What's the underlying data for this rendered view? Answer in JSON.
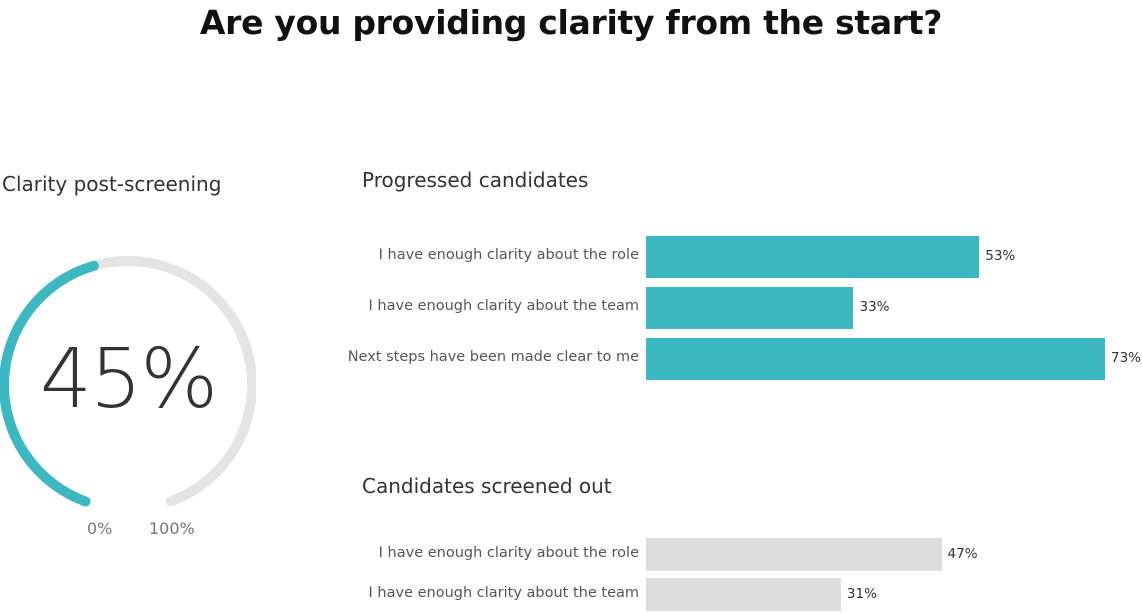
{
  "page": {
    "title": "Are you providing clarity from the start?"
  },
  "colors": {
    "teal": "#3bb8c2",
    "grey": "#dddddd",
    "track": "#e4e4e4"
  },
  "chart_data": [
    {
      "type": "gauge",
      "title": "Clarity post-screening",
      "value": 45,
      "value_label": "45%",
      "min_label": "0%",
      "max_label": "100%",
      "range": [
        0,
        100
      ]
    },
    {
      "type": "bar",
      "orientation": "horizontal",
      "title": "Progressed candidates",
      "categories": [
        "I have enough clarity about the role",
        "I have enough clarity about the team",
        "Next steps have been made clear to me"
      ],
      "values": [
        53,
        33,
        73
      ],
      "value_labels": [
        "53%",
        "33%",
        "73%"
      ],
      "xlim": [
        0,
        73
      ]
    },
    {
      "type": "bar",
      "orientation": "horizontal",
      "title": "Candidates screened out",
      "categories": [
        "I have enough clarity about the role",
        "I have enough clarity about the team"
      ],
      "values": [
        47,
        31
      ],
      "value_labels": [
        "47%",
        "31%"
      ],
      "xlim": [
        0,
        73
      ]
    }
  ]
}
